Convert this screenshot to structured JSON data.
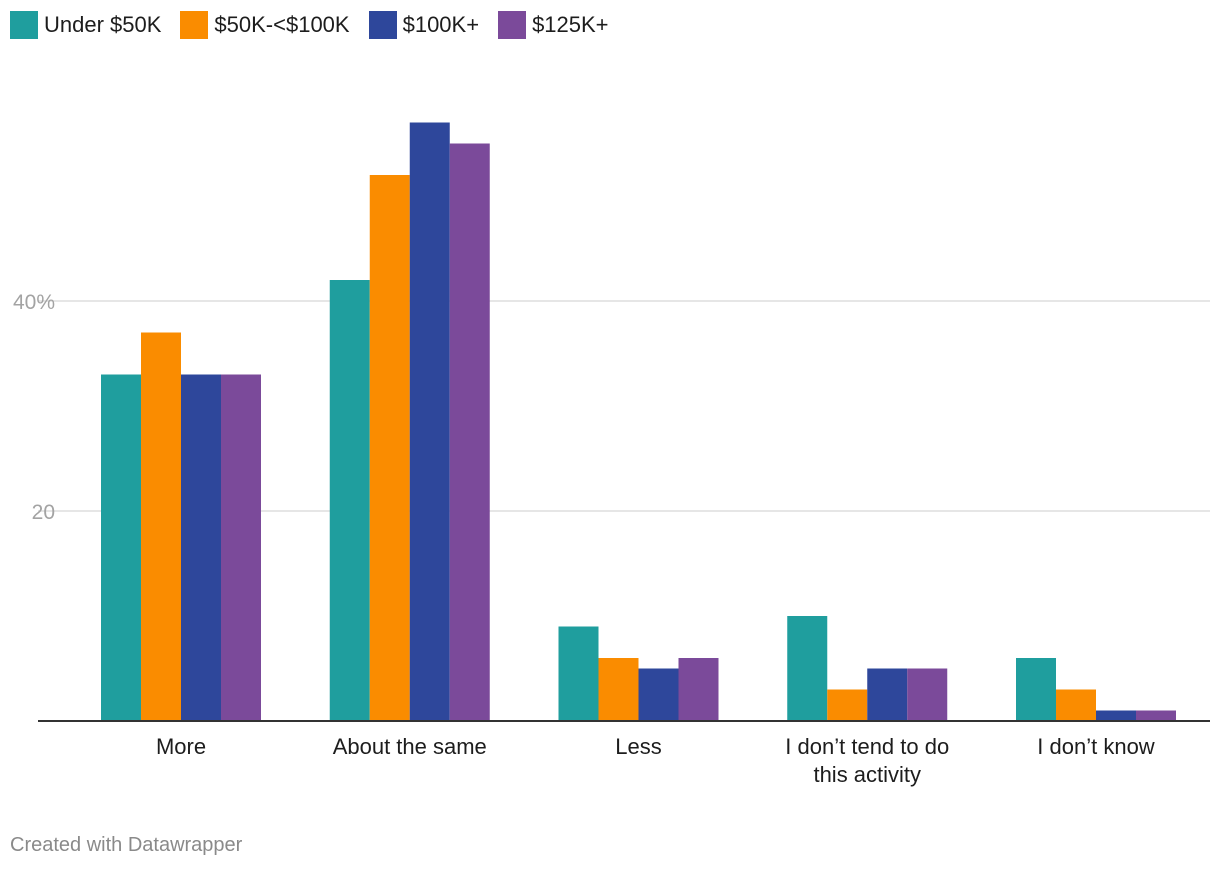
{
  "chart_data": {
    "type": "bar",
    "title": "",
    "xlabel": "",
    "ylabel": "",
    "ylim": [
      0,
      58
    ],
    "y_ticks": [
      {
        "value": 20,
        "label": "20"
      },
      {
        "value": 40,
        "label": "40%"
      }
    ],
    "categories": [
      [
        "More"
      ],
      [
        "About the same"
      ],
      [
        "Less"
      ],
      [
        "I don’t tend to do",
        "this activity"
      ],
      [
        "I don’t know"
      ]
    ],
    "series": [
      {
        "name": "Under $50K",
        "color": "#1f9e9e",
        "values": [
          33,
          42,
          9,
          10,
          6
        ]
      },
      {
        "name": "$50K-<$100K",
        "color": "#fa8c00",
        "values": [
          37,
          52,
          6,
          3,
          3
        ]
      },
      {
        "name": "$100K+",
        "color": "#2e479b",
        "values": [
          33,
          57,
          5,
          5,
          1
        ]
      },
      {
        "name": "$125K+",
        "color": "#7b4a9a",
        "values": [
          33,
          55,
          6,
          5,
          1
        ]
      }
    ],
    "legend_position": "top-left",
    "grid": true
  },
  "footer": {
    "credit": "Created with Datawrapper"
  }
}
